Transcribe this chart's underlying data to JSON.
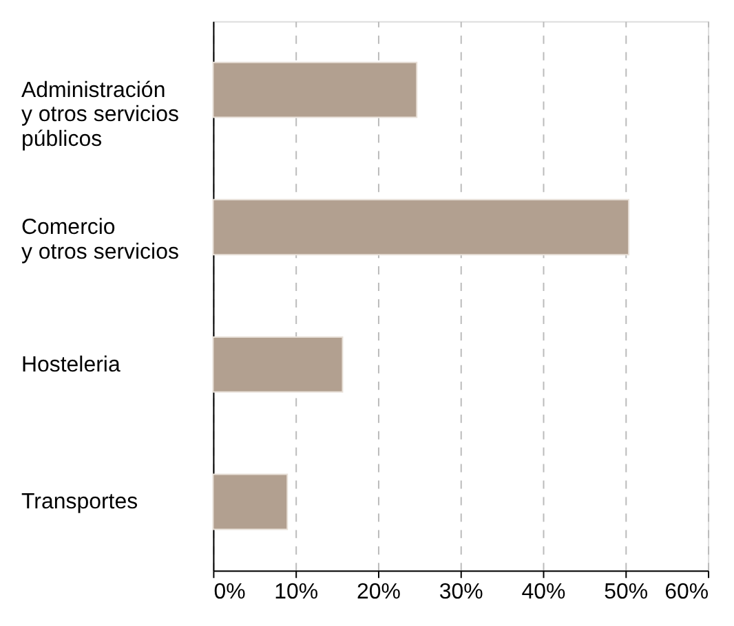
{
  "chart_data": {
    "type": "bar",
    "orientation": "horizontal",
    "categories": [
      "Administración\ny otros servicios\npúblicos",
      "Comercio\ny otros servicios",
      "Hosteleria",
      "Transportes"
    ],
    "values": [
      24.7,
      50.4,
      15.7,
      9.0
    ],
    "color": "#b2a090",
    "xlim": [
      0,
      60
    ],
    "xticks": [
      {
        "value": 0,
        "label": "0%"
      },
      {
        "value": 10,
        "label": "10%"
      },
      {
        "value": 20,
        "label": "20%"
      },
      {
        "value": 30,
        "label": "30%"
      },
      {
        "value": 40,
        "label": "40%"
      },
      {
        "value": 50,
        "label": "50%"
      },
      {
        "value": 60,
        "label": "60%"
      }
    ],
    "grid": "x"
  }
}
